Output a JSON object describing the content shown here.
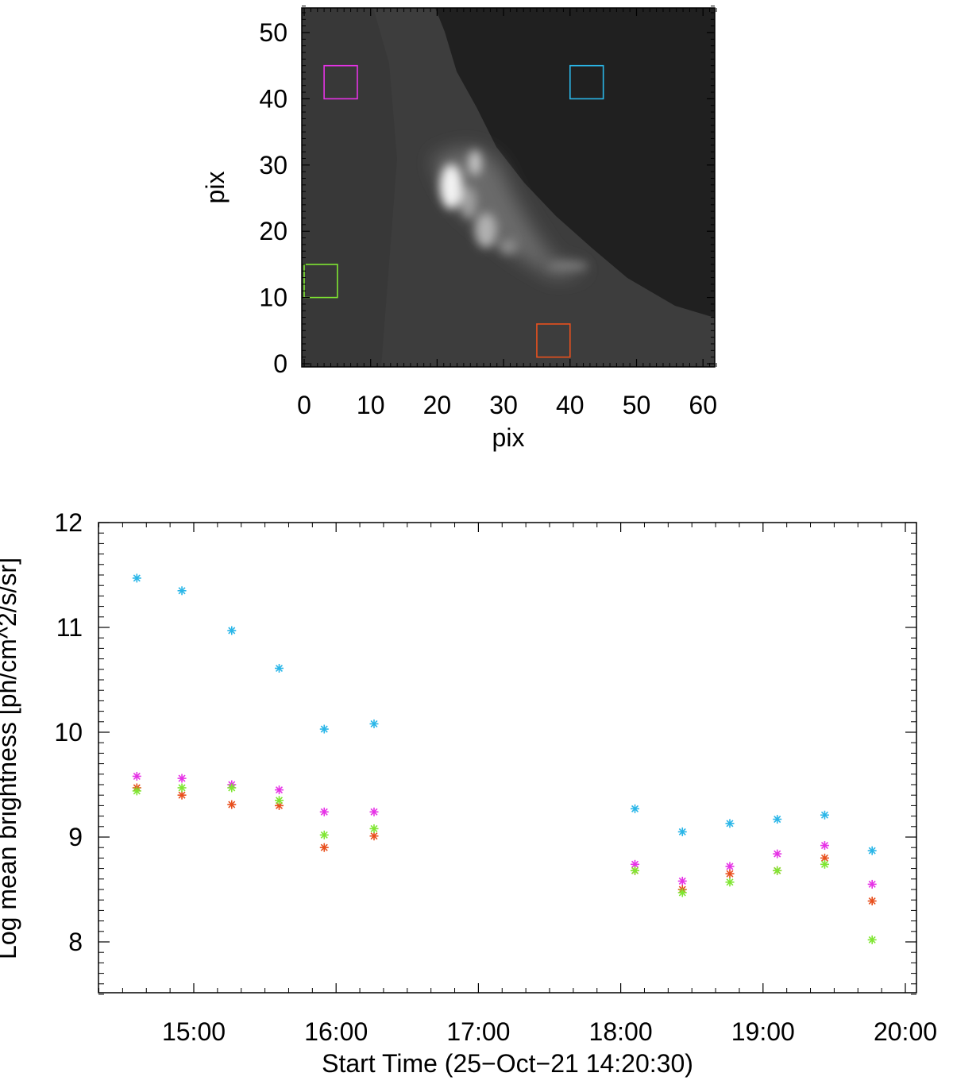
{
  "chart_data": [
    {
      "type": "heatmap",
      "title": "",
      "xlabel": "pix",
      "ylabel": "pix",
      "xlim": [
        0,
        62
      ],
      "ylim": [
        0,
        54
      ],
      "xticks": [
        "0",
        "10",
        "20",
        "30",
        "40",
        "50",
        "60"
      ],
      "yticks": [
        "0",
        "10",
        "20",
        "30",
        "40",
        "50"
      ],
      "colormap": "grayscale",
      "regions": [
        {
          "color": "#e633e6",
          "x": [
            3,
            8
          ],
          "y": [
            40,
            45
          ]
        },
        {
          "color": "#2ab6e8",
          "x": [
            40,
            45
          ],
          "y": [
            40,
            45
          ]
        },
        {
          "color": "#7fe632",
          "x": [
            0,
            5
          ],
          "y": [
            10,
            15
          ]
        },
        {
          "color": "#e8501e",
          "x": [
            35,
            40
          ],
          "y": [
            1,
            6
          ]
        }
      ]
    },
    {
      "type": "scatter",
      "title": "",
      "xlabel": "Start Time (25−Oct−21 14:20:30)",
      "ylabel": "Log mean brightness [ph/cm^2/s/sr]",
      "xlim": [
        "14:20",
        "20:05"
      ],
      "ylim": [
        7.5,
        12
      ],
      "xticks": [
        "15:00",
        "16:00",
        "17:00",
        "18:00",
        "19:00",
        "20:00"
      ],
      "yticks": [
        "8",
        "9",
        "10",
        "11",
        "12"
      ],
      "marker": "asterisk",
      "x": [
        "14:36",
        "14:55",
        "15:16",
        "15:36",
        "15:55",
        "16:16",
        "18:06",
        "18:26",
        "18:46",
        "19:06",
        "19:26",
        "19:46"
      ],
      "series": [
        {
          "color": "#2ab6e8",
          "values": [
            11.47,
            11.35,
            10.97,
            10.61,
            10.03,
            10.08,
            9.27,
            9.05,
            9.13,
            9.17,
            9.21,
            8.87
          ]
        },
        {
          "color": "#e633e6",
          "values": [
            9.58,
            9.56,
            9.5,
            9.45,
            9.24,
            9.24,
            8.74,
            8.58,
            8.72,
            8.84,
            8.92,
            8.55
          ]
        },
        {
          "color": "#e8501e",
          "values": [
            9.47,
            9.4,
            9.31,
            9.3,
            8.9,
            9.01,
            8.68,
            8.5,
            8.65,
            8.68,
            8.8,
            8.39
          ]
        },
        {
          "color": "#7fe632",
          "values": [
            9.44,
            9.47,
            9.47,
            9.35,
            9.02,
            9.08,
            8.68,
            8.47,
            8.57,
            8.68,
            8.74,
            8.02
          ]
        }
      ]
    }
  ]
}
